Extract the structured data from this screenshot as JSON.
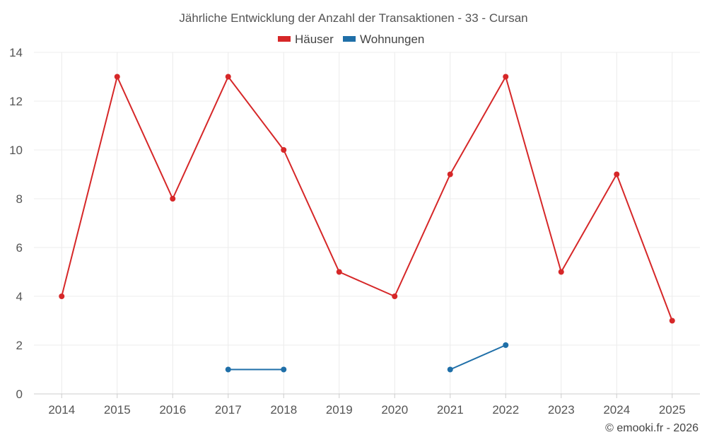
{
  "chart_data": {
    "type": "line",
    "title": "Jährliche Entwicklung der Anzahl der Transaktionen - 33 - Cursan",
    "categories": [
      "2014",
      "2015",
      "2016",
      "2017",
      "2018",
      "2019",
      "2020",
      "2021",
      "2022",
      "2023",
      "2024",
      "2025"
    ],
    "series": [
      {
        "name": "Häuser",
        "color": "#d62728",
        "values": [
          4,
          13,
          8,
          13,
          10,
          5,
          4,
          9,
          13,
          5,
          9,
          3
        ]
      },
      {
        "name": "Wohnungen",
        "color": "#1f6fa8",
        "values": [
          null,
          null,
          null,
          1,
          1,
          null,
          null,
          1,
          2,
          null,
          null,
          null
        ]
      }
    ],
    "ylim": [
      0,
      14
    ],
    "yticks": [
      0,
      2,
      4,
      6,
      8,
      10,
      12,
      14
    ],
    "grid": true,
    "legend_position": "top-center",
    "xlabel": "",
    "ylabel": ""
  },
  "credit": "© emooki.fr - 2026"
}
